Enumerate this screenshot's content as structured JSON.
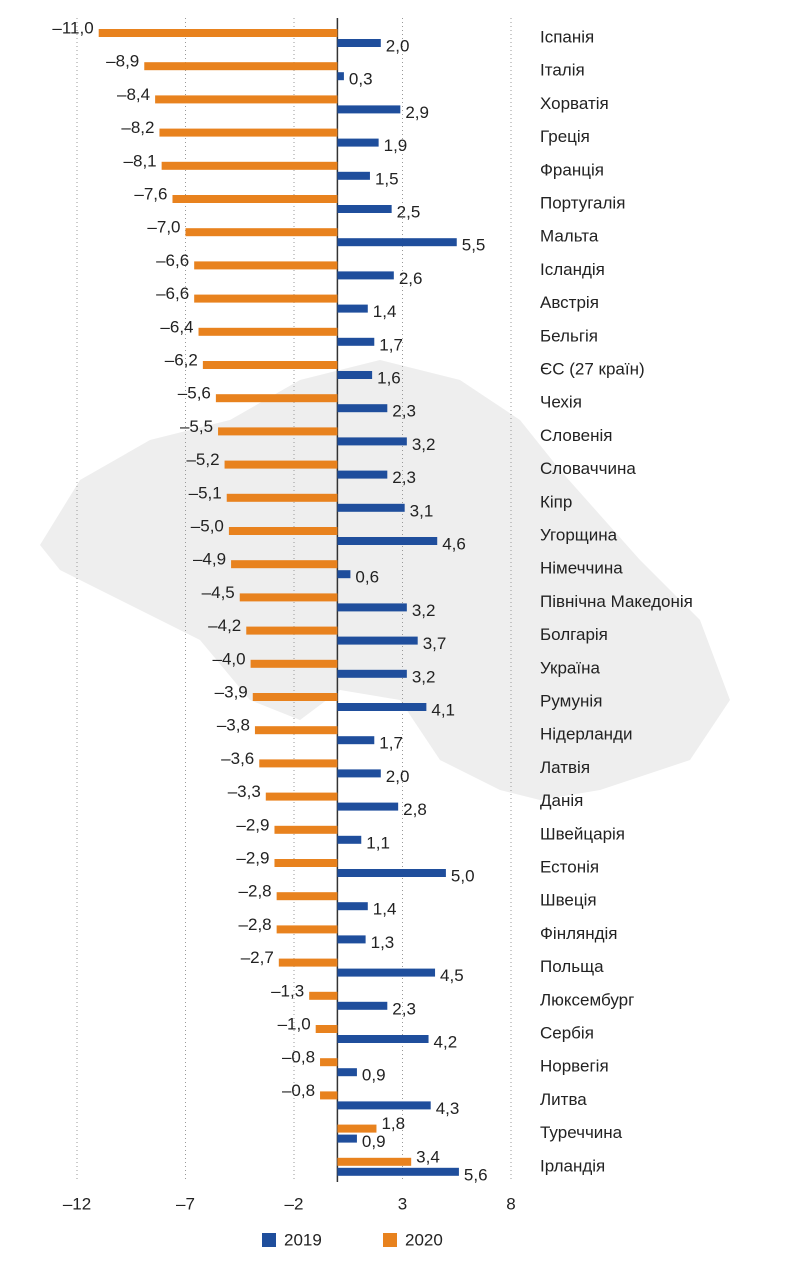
{
  "chart_data": {
    "type": "hbar",
    "categories": [
      "Іспанія",
      "Італія",
      "Хорватія",
      "Греція",
      "Франція",
      "Португалія",
      "Мальта",
      "Ісландія",
      "Австрія",
      "Бельгія",
      "ЄС (27 країн)",
      "Чехія",
      "Словенія",
      "Словаччина",
      "Кіпр",
      "Угорщина",
      "Німеччина",
      "Північна Македонія",
      "Болгарія",
      "Україна",
      "Румунія",
      "Нідерланди",
      "Латвія",
      "Данія",
      "Швейцарія",
      "Естонія",
      "Швеція",
      "Фінляндія",
      "Польща",
      "Люксембург",
      "Сербія",
      "Норвегія",
      "Литва",
      "Туреччина",
      "Ірландія"
    ],
    "series": [
      {
        "name": "2019",
        "color": "#1f4e9c",
        "values": [
          2.0,
          0.3,
          2.9,
          1.9,
          1.5,
          2.5,
          5.5,
          2.6,
          1.4,
          1.7,
          1.6,
          2.3,
          3.2,
          2.3,
          3.1,
          4.6,
          0.6,
          3.2,
          3.7,
          3.2,
          4.1,
          1.7,
          2.0,
          2.8,
          1.1,
          5.0,
          1.4,
          1.3,
          4.5,
          2.3,
          4.2,
          0.9,
          4.3,
          0.9,
          5.6
        ],
        "value_labels": [
          "2,0",
          "0,3",
          "2,9",
          "1,9",
          "1,5",
          "2,5",
          "5,5",
          "2,6",
          "1,4",
          "1,7",
          "1,6",
          "2,3",
          "3,2",
          "2,3",
          "3,1",
          "4,6",
          "0,6",
          "3,2",
          "3,7",
          "3,2",
          "4,1",
          "1,7",
          "2,0",
          "2,8",
          "1,1",
          "5,0",
          "1,4",
          "1,3",
          "4,5",
          "2,3",
          "4,2",
          "0,9",
          "4,3",
          "0,9",
          "5,6"
        ]
      },
      {
        "name": "2020",
        "color": "#e8821e",
        "values": [
          -11.0,
          -8.9,
          -8.4,
          -8.2,
          -8.1,
          -7.6,
          -7.0,
          -6.6,
          -6.6,
          -6.4,
          -6.2,
          -5.6,
          -5.5,
          -5.2,
          -5.1,
          -5.0,
          -4.9,
          -4.5,
          -4.2,
          -4.0,
          -3.9,
          -3.8,
          -3.6,
          -3.3,
          -2.9,
          -2.9,
          -2.8,
          -2.8,
          -2.7,
          -1.3,
          -1.0,
          -0.8,
          -0.8,
          1.8,
          3.4
        ],
        "value_labels": [
          "–11,0",
          "–8,9",
          "–8,4",
          "–8,2",
          "–8,1",
          "–7,6",
          "–7,0",
          "–6,6",
          "–6,6",
          "–6,4",
          "–6,2",
          "–5,6",
          "–5,5",
          "–5,2",
          "–5,1",
          "–5,0",
          "–4,9",
          "–4,5",
          "–4,2",
          "–4,0",
          "–3,9",
          "–3,8",
          "–3,6",
          "–3,3",
          "–2,9",
          "–2,9",
          "–2,8",
          "–2,8",
          "–2,7",
          "–1,3",
          "–1,0",
          "–0,8",
          "–0,8",
          "1,8",
          "3,4"
        ]
      }
    ],
    "xlim": [
      -12,
      8
    ],
    "xticks": [
      {
        "value": -12,
        "label": "–12"
      },
      {
        "value": -7,
        "label": "–7"
      },
      {
        "value": -2,
        "label": "–2"
      },
      3,
      8
    ],
    "grid": true
  }
}
